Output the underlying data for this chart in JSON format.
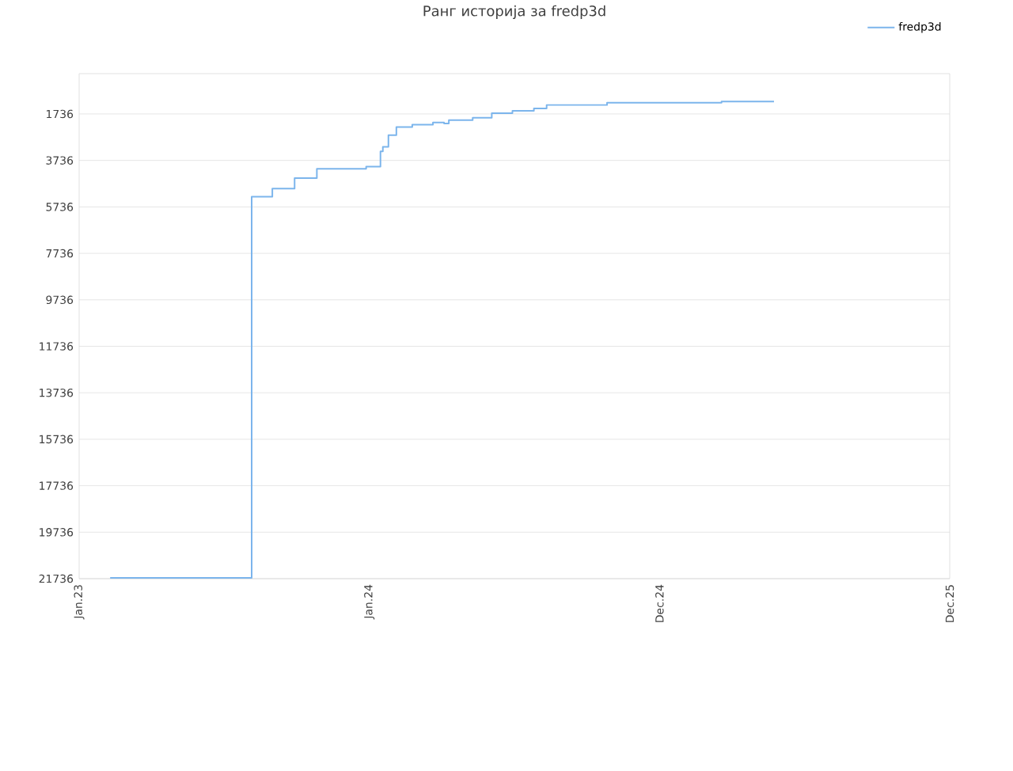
{
  "chart_data": {
    "type": "step",
    "title": "Ранг историја за fredp3d",
    "x": [
      "2023-02-09",
      "2023-08-06",
      "2023-09-01",
      "2023-09-29",
      "2023-10-27",
      "2023-12-28",
      "2024-01-15",
      "2024-01-18",
      "2024-01-25",
      "2024-02-04",
      "2024-02-24",
      "2024-03-21",
      "2024-04-04",
      "2024-04-10",
      "2024-05-10",
      "2024-06-03",
      "2024-06-29",
      "2024-07-26",
      "2024-08-11",
      "2024-10-26",
      "2025-03-19",
      "2025-05-24"
    ],
    "series": [
      {
        "name": "fredp3d",
        "color": "#7cb5ec",
        "values": [
          21700,
          5300,
          4950,
          4500,
          4100,
          4000,
          3350,
          3150,
          2650,
          2300,
          2200,
          2100,
          2150,
          2000,
          1900,
          1700,
          1600,
          1500,
          1350,
          1250,
          1200,
          1200
        ]
      }
    ],
    "xlim": [
      "2023-01-01",
      "2025-12-31"
    ],
    "xticks": [
      {
        "value": "2023-01-01",
        "label": "Jan.23"
      },
      {
        "value": "2024-01-01",
        "label": "Jan.24"
      },
      {
        "value": "2024-12-31",
        "label": "Dec.24"
      },
      {
        "value": "2025-12-31",
        "label": "Dec.25"
      }
    ],
    "ylim": [
      21736,
      0
    ],
    "yticks": [
      1736,
      3736,
      5736,
      7736,
      9736,
      11736,
      13736,
      15736,
      17736,
      19736,
      21736
    ],
    "grid": "y",
    "legend": "top right",
    "marker": "none",
    "line_style": "solid"
  }
}
